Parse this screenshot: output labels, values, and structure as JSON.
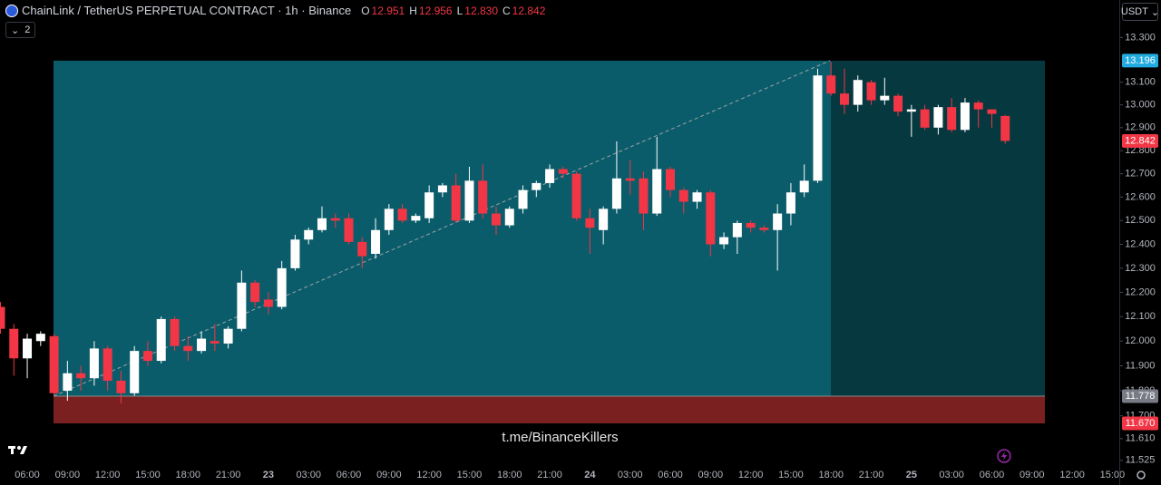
{
  "chart_data": {
    "type": "candlestick",
    "title": "ChainLink / TetherUS PERPETUAL CONTRACT · 1h · Binance",
    "ohlc_legend": [
      {
        "key": "O",
        "value": "12.951"
      },
      {
        "key": "H",
        "value": "12.956"
      },
      {
        "key": "L",
        "value": "12.830"
      },
      {
        "key": "C",
        "value": "12.842"
      }
    ],
    "badge": "2",
    "currency": "USDT",
    "watermark": "t.me/BinanceKillers",
    "log_scale": true,
    "up_color": "#ffffff",
    "down_color": "#f23645",
    "ylim": [
      11.51,
      13.47
    ],
    "yticks": [
      {
        "value": 13.3,
        "label": "13.300"
      },
      {
        "value": 13.1,
        "label": "13.100"
      },
      {
        "value": 13.0,
        "label": "13.000"
      },
      {
        "value": 12.9,
        "label": "12.900"
      },
      {
        "value": 12.8,
        "label": "12.800"
      },
      {
        "value": 12.7,
        "label": "12.700"
      },
      {
        "value": 12.6,
        "label": "12.600"
      },
      {
        "value": 12.5,
        "label": "12.500"
      },
      {
        "value": 12.4,
        "label": "12.400"
      },
      {
        "value": 12.3,
        "label": "12.300"
      },
      {
        "value": 12.2,
        "label": "12.200"
      },
      {
        "value": 12.1,
        "label": "12.100"
      },
      {
        "value": 12.0,
        "label": "12.000"
      },
      {
        "value": 11.9,
        "label": "11.900"
      },
      {
        "value": 11.8,
        "label": "11.800"
      },
      {
        "value": 11.7,
        "label": "11.700"
      },
      {
        "value": 11.61,
        "label": "11.610"
      },
      {
        "value": 11.525,
        "label": "11.525"
      }
    ],
    "categories": [
      null,
      null,
      "06:00",
      null,
      null,
      "09:00",
      null,
      null,
      "12:00",
      null,
      null,
      "15:00",
      null,
      null,
      "18:00",
      null,
      null,
      "21:00",
      null,
      null,
      "23",
      null,
      null,
      "03:00",
      null,
      null,
      "06:00",
      null,
      null,
      "09:00",
      null,
      null,
      "12:00",
      null,
      null,
      "15:00",
      null,
      null,
      "18:00",
      null,
      null,
      "21:00",
      null,
      null,
      "24",
      null,
      null,
      "03:00",
      null,
      null,
      "06:00",
      null,
      null,
      "09:00",
      null,
      null,
      "12:00",
      null,
      null,
      "15:00",
      null,
      null,
      "18:00",
      null,
      null,
      "21:00",
      null,
      null,
      "25",
      null,
      null,
      "03:00",
      null,
      null,
      "06:00",
      null,
      null,
      "09:00",
      null,
      null,
      "12:00",
      null,
      null,
      "15:00"
    ],
    "open": [
      12.14,
      12.05,
      11.93,
      12.0,
      12.02,
      11.8,
      11.87,
      11.85,
      11.97,
      11.84,
      11.79,
      11.96,
      11.92,
      12.09,
      11.98,
      11.96,
      12.0,
      11.99,
      12.05,
      12.24,
      12.17,
      12.14,
      12.3,
      12.42,
      12.46,
      12.51,
      12.51,
      12.41,
      12.36,
      12.46,
      12.55,
      12.5,
      12.51,
      12.62,
      12.65,
      12.5,
      12.67,
      12.53,
      12.48,
      12.55,
      12.63,
      12.66,
      12.72,
      12.7,
      12.51,
      12.46,
      12.55,
      12.68,
      12.68,
      12.53,
      12.72,
      12.63,
      12.58,
      12.62,
      12.4,
      12.43,
      12.49,
      12.47,
      12.46,
      12.53,
      12.62,
      12.67,
      13.13,
      13.05,
      13.0,
      13.1,
      13.02,
      13.04,
      12.97,
      12.98,
      12.9,
      12.99,
      12.89,
      13.01,
      12.98,
      12.951,
      null,
      null,
      null,
      null,
      null,
      null,
      null,
      null
    ],
    "high": [
      12.16,
      12.07,
      12.03,
      12.04,
      12.03,
      11.92,
      11.9,
      12.0,
      11.98,
      11.88,
      11.98,
      12.0,
      12.1,
      12.1,
      12.02,
      12.04,
      12.07,
      12.06,
      12.29,
      12.25,
      12.2,
      12.33,
      12.44,
      12.47,
      12.56,
      12.53,
      12.53,
      12.43,
      12.51,
      12.57,
      12.57,
      12.53,
      12.65,
      12.66,
      12.7,
      12.73,
      12.74,
      12.56,
      12.56,
      12.65,
      12.67,
      12.74,
      12.73,
      12.71,
      12.55,
      12.56,
      12.84,
      12.76,
      12.71,
      12.86,
      12.73,
      12.64,
      12.63,
      12.63,
      12.45,
      12.5,
      12.5,
      12.48,
      12.57,
      12.66,
      12.74,
      13.16,
      13.19,
      13.16,
      13.13,
      13.11,
      13.12,
      13.05,
      13.0,
      13.0,
      13.0,
      13.03,
      13.03,
      13.02,
      12.98,
      12.956,
      null,
      null,
      null,
      null,
      null,
      null,
      null,
      null
    ],
    "low": [
      12.03,
      11.86,
      11.85,
      11.98,
      11.78,
      11.76,
      11.8,
      11.82,
      11.8,
      11.75,
      11.78,
      11.9,
      11.91,
      11.96,
      11.92,
      11.95,
      11.96,
      11.97,
      12.04,
      12.14,
      12.11,
      12.13,
      12.29,
      12.4,
      12.45,
      12.47,
      12.4,
      12.3,
      12.34,
      12.44,
      12.49,
      12.49,
      12.49,
      12.6,
      12.49,
      12.49,
      12.51,
      12.44,
      12.47,
      12.53,
      12.6,
      12.64,
      12.68,
      12.5,
      12.36,
      12.4,
      12.53,
      12.61,
      12.46,
      12.52,
      12.6,
      12.53,
      12.55,
      12.35,
      12.38,
      12.36,
      12.45,
      12.45,
      12.29,
      12.48,
      12.6,
      12.66,
      13.04,
      12.96,
      12.97,
      13.0,
      13.0,
      12.95,
      12.86,
      12.89,
      12.87,
      12.88,
      12.88,
      12.9,
      12.9,
      12.83,
      null,
      null,
      null,
      null,
      null,
      null,
      null,
      null
    ],
    "close": [
      12.05,
      11.93,
      12.01,
      12.03,
      11.79,
      11.87,
      11.85,
      11.97,
      11.84,
      11.79,
      11.96,
      11.92,
      12.09,
      11.98,
      11.96,
      12.01,
      11.99,
      12.05,
      12.24,
      12.16,
      12.14,
      12.3,
      12.42,
      12.46,
      12.51,
      12.5,
      12.41,
      12.35,
      12.46,
      12.55,
      12.5,
      12.52,
      12.62,
      12.65,
      12.5,
      12.67,
      12.53,
      12.48,
      12.55,
      12.63,
      12.66,
      12.72,
      12.7,
      12.51,
      12.47,
      12.55,
      12.68,
      12.67,
      12.53,
      12.72,
      12.63,
      12.58,
      12.62,
      12.4,
      12.43,
      12.49,
      12.47,
      12.46,
      12.53,
      12.62,
      12.67,
      13.13,
      13.05,
      13.0,
      13.11,
      13.02,
      13.04,
      12.97,
      12.98,
      12.9,
      12.99,
      12.89,
      13.01,
      12.98,
      12.96,
      12.842,
      null,
      null,
      null,
      null,
      null,
      null,
      null,
      null
    ],
    "position": {
      "target": {
        "value": 13.196,
        "label": "13.196",
        "color": "#22abe0"
      },
      "entry": {
        "value": 11.778,
        "label": "11.778",
        "color": "#787b86"
      },
      "stop": {
        "value": 11.67,
        "label": "11.670",
        "color": "#f23645"
      },
      "profit_color": "#0b5c6a",
      "profit_closed_color": "#06383f",
      "loss_color": "#7a2020"
    },
    "last_price": {
      "value": 12.842,
      "label": "12.842",
      "color": "#f23645"
    }
  }
}
